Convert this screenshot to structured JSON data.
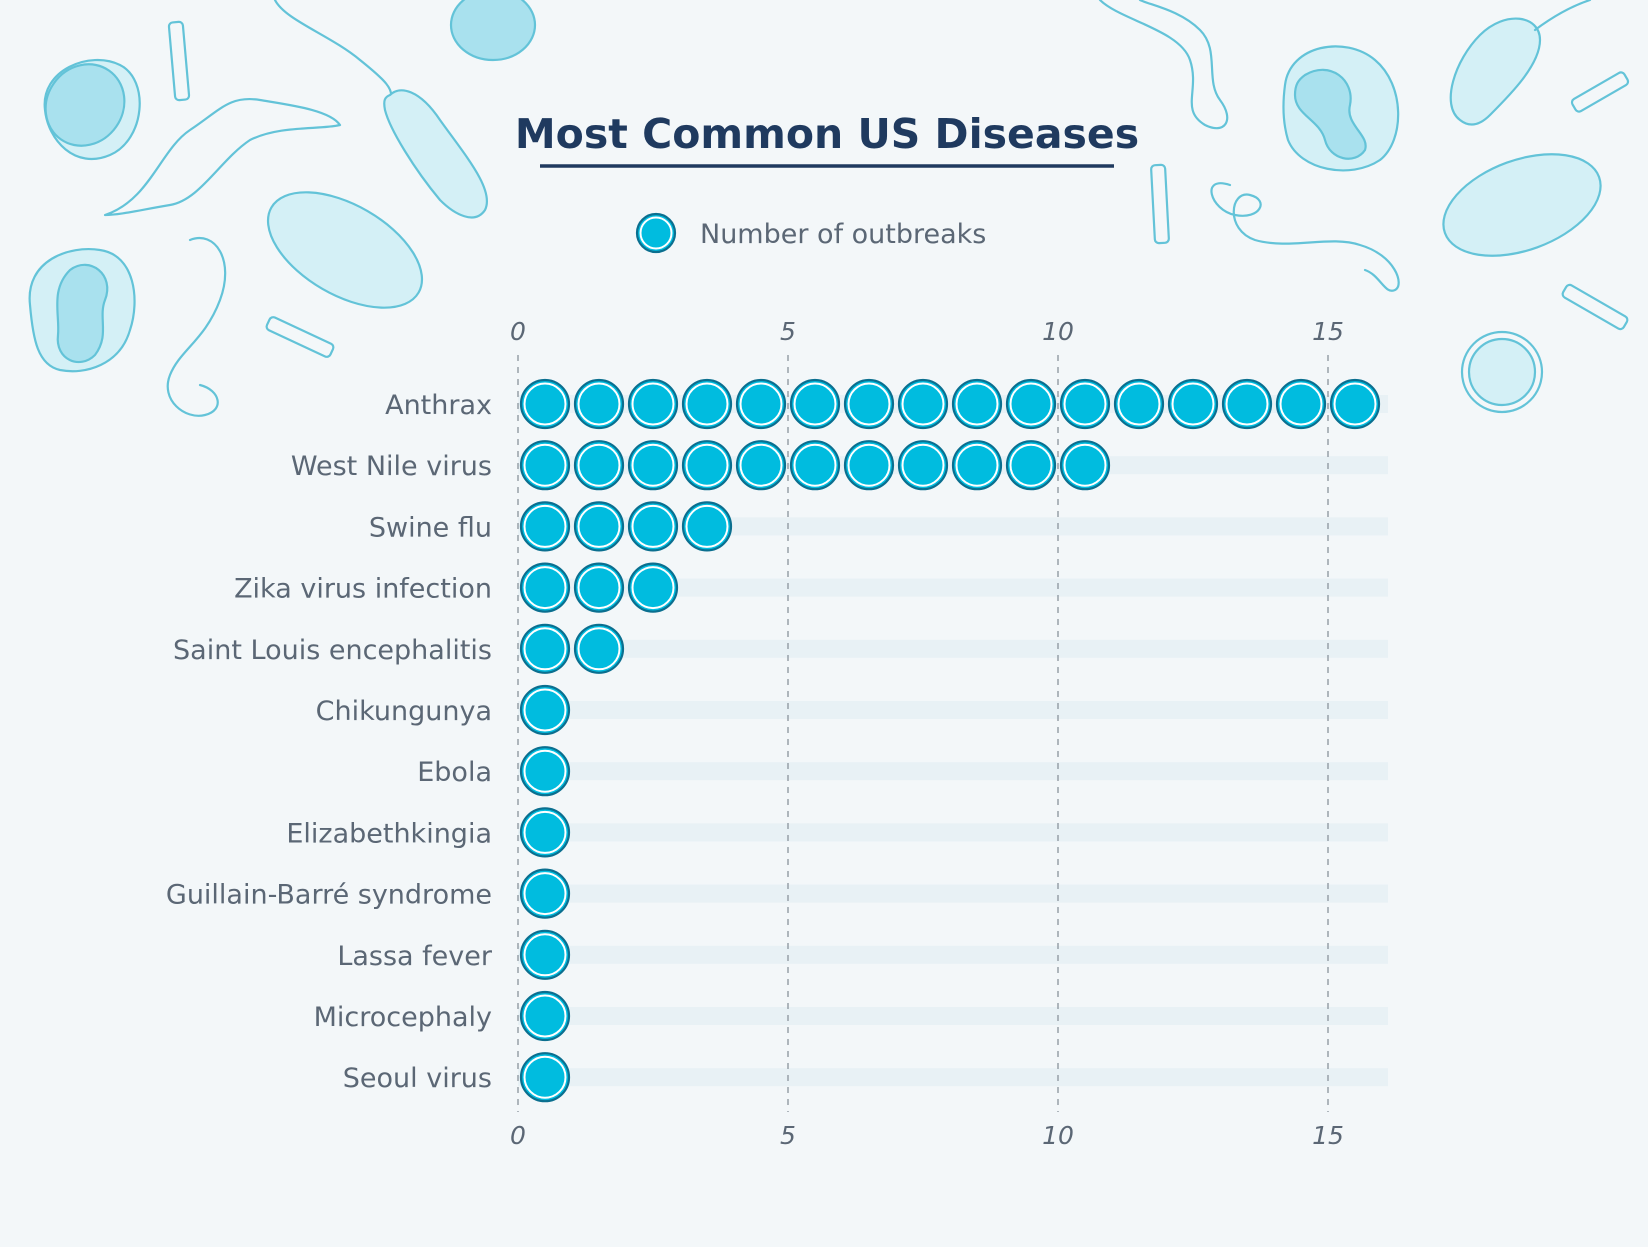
{
  "chart_data": {
    "type": "dot-bar",
    "title": "Most Common US Diseases",
    "legend": {
      "label": "Number of outbreaks",
      "position": "top-center"
    },
    "categories": [
      "Anthrax",
      "West Nile virus",
      "Swine flu",
      "Zika virus infection",
      "Saint Louis encephalitis",
      "Chikungunya",
      "Ebola",
      "Elizabethkingia",
      "Guillain-Barré syndrome",
      "Lassa fever",
      "Microcephaly",
      "Seoul virus"
    ],
    "series": [
      {
        "name": "Number of outbreaks",
        "values": [
          16,
          11,
          4,
          3,
          2,
          1,
          1,
          1,
          1,
          1,
          1,
          1
        ]
      }
    ],
    "xlim": [
      0,
      16
    ],
    "xticks": [
      0,
      5,
      10,
      15
    ],
    "grid": "dashed vertical at ticks",
    "colors": {
      "dot": "#00bcdf",
      "dot_ring": "#0b6f8f",
      "title": "#1f3a5f",
      "text": "#5b6775",
      "track": "#e8f1f5"
    }
  }
}
